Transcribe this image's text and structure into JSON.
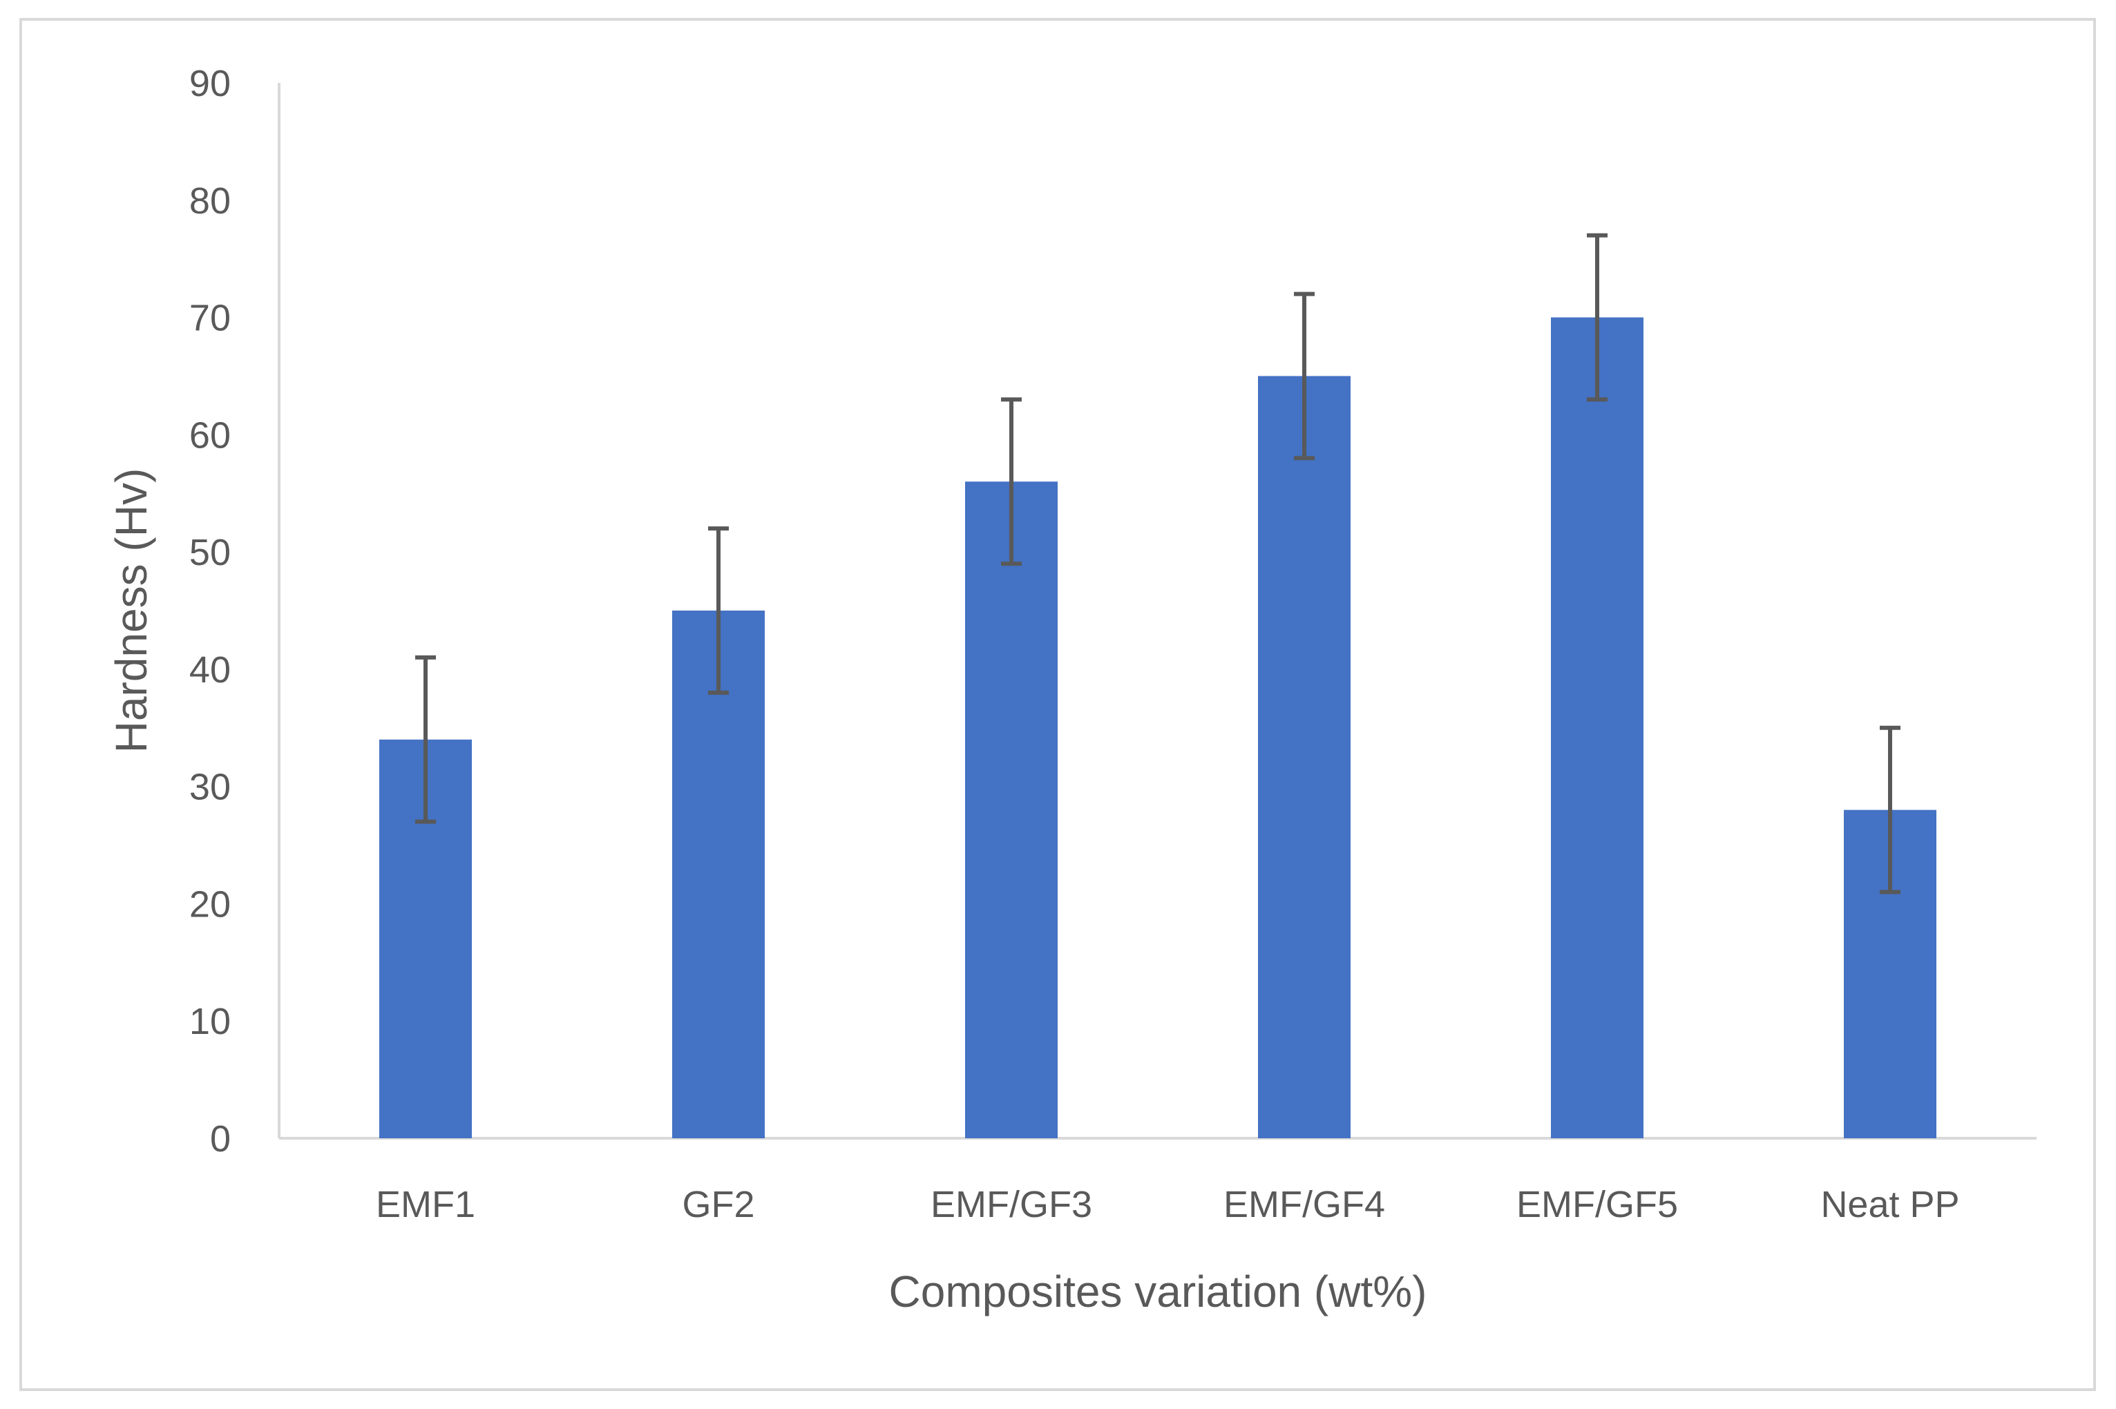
{
  "chart_data": {
    "type": "bar",
    "categories": [
      "EMF1",
      "GF2",
      "EMF/GF3",
      "EMF/GF4",
      "EMF/GF5",
      "Neat PP"
    ],
    "values": [
      34,
      45,
      56,
      65,
      70,
      28
    ],
    "error": [
      7,
      7,
      7,
      7,
      7,
      7
    ],
    "xlabel": "Composites variation (wt%)",
    "ylabel": "Hardness (Hv)",
    "ylim": [
      0,
      90
    ],
    "yticks": [
      0,
      10,
      20,
      30,
      40,
      50,
      60,
      70,
      80,
      90
    ],
    "grid": false,
    "legend": "none",
    "colors": {
      "bar": "#4472C4",
      "error_bar": "#595959",
      "axis": "#d9d9d9",
      "text": "#595959"
    }
  }
}
